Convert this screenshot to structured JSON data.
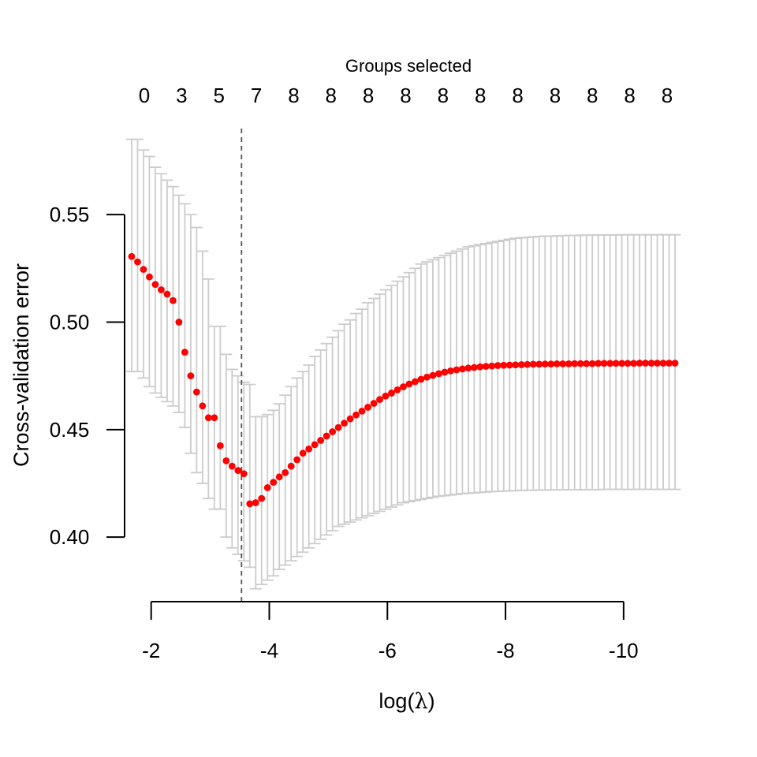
{
  "chart_data": {
    "type": "scatter",
    "title": "",
    "xlabel_prefix": "log",
    "xlabel_symbol": "λ",
    "ylabel": "Cross-validation error",
    "top_axis_title": "Groups selected",
    "top_axis_labels": [
      "0",
      "3",
      "5",
      "7",
      "8",
      "8",
      "8",
      "8",
      "8",
      "8",
      "8",
      "8",
      "8",
      "8",
      "8"
    ],
    "x_ticks": [
      -2,
      -4,
      -6,
      -8,
      -10
    ],
    "x_tick_labels": [
      "-2",
      "-4",
      "-6",
      "-8",
      "-10"
    ],
    "y_ticks": [
      0.4,
      0.45,
      0.5,
      0.55
    ],
    "y_tick_labels": [
      "0.40",
      "0.45",
      "0.50",
      "0.55"
    ],
    "xlim": [
      -1.55,
      -10.95
    ],
    "ylim": [
      0.37,
      0.59
    ],
    "selected_log_lambda": -3.53,
    "grid": false,
    "colors": {
      "points": "#ff0000",
      "error_bars": "#cccccc",
      "reference_line": "#555555",
      "axes": "#000000"
    },
    "series": [
      {
        "x": [
          -1.67,
          -1.77,
          -1.87,
          -1.97,
          -2.07,
          -2.17,
          -2.27,
          -2.37,
          -2.47,
          -2.57,
          -2.67,
          -2.77,
          -2.87,
          -2.97,
          -3.07,
          -3.17,
          -3.27,
          -3.37,
          -3.47,
          -3.57,
          -3.67,
          -3.77,
          -3.87,
          -3.97,
          -4.07,
          -4.17,
          -4.27,
          -4.37,
          -4.47,
          -4.57,
          -4.67,
          -4.77,
          -4.87,
          -4.97,
          -5.07,
          -5.17,
          -5.27,
          -5.37,
          -5.47,
          -5.57,
          -5.67,
          -5.77,
          -5.87,
          -5.97,
          -6.07,
          -6.17,
          -6.27,
          -6.37,
          -6.47,
          -6.57,
          -6.67,
          -6.77,
          -6.87,
          -6.97,
          -7.07,
          -7.17,
          -7.27,
          -7.37,
          -7.47,
          -7.57,
          -7.67,
          -7.77,
          -7.87,
          -7.97,
          -8.07,
          -8.17,
          -8.27,
          -8.37,
          -8.47,
          -8.57,
          -8.67,
          -8.77,
          -8.87,
          -8.97,
          -9.07,
          -9.17,
          -9.27,
          -9.37,
          -9.47,
          -9.57,
          -9.67,
          -9.77,
          -9.87,
          -9.97,
          -10.07,
          -10.17,
          -10.27,
          -10.37,
          -10.47,
          -10.57,
          -10.67,
          -10.77,
          -10.87
        ],
        "cve": [
          0.5305,
          0.528,
          0.5245,
          0.521,
          0.5175,
          0.515,
          0.513,
          0.51,
          0.5,
          0.486,
          0.475,
          0.4675,
          0.461,
          0.4555,
          0.4555,
          0.4425,
          0.4355,
          0.433,
          0.431,
          0.4295,
          0.4155,
          0.416,
          0.418,
          0.423,
          0.4255,
          0.428,
          0.43,
          0.433,
          0.436,
          0.439,
          0.441,
          0.443,
          0.445,
          0.447,
          0.449,
          0.451,
          0.453,
          0.455,
          0.4568,
          0.4586,
          0.4604,
          0.4622,
          0.464,
          0.4656,
          0.467,
          0.4685,
          0.4699,
          0.4712,
          0.4723,
          0.4734,
          0.4744,
          0.4752,
          0.476,
          0.4767,
          0.4773,
          0.4778,
          0.4782,
          0.4786,
          0.4789,
          0.4792,
          0.4794,
          0.4796,
          0.4798,
          0.4799,
          0.48,
          0.4801,
          0.4802,
          0.4803,
          0.4804,
          0.4804,
          0.4805,
          0.4805,
          0.4806,
          0.4806,
          0.4806,
          0.4807,
          0.4807,
          0.4807,
          0.4807,
          0.4808,
          0.4808,
          0.4808,
          0.4808,
          0.4808,
          0.4808,
          0.4808,
          0.4809,
          0.4809,
          0.4809,
          0.4809,
          0.4809,
          0.4809,
          0.4809
        ],
        "upper": [
          0.585,
          0.585,
          0.58,
          0.577,
          0.572,
          0.569,
          0.566,
          0.563,
          0.559,
          0.555,
          0.55,
          0.544,
          0.533,
          0.52,
          0.498,
          0.498,
          0.485,
          0.478,
          0.475,
          0.472,
          0.471,
          0.456,
          0.456,
          0.457,
          0.459,
          0.462,
          0.466,
          0.47,
          0.474,
          0.477,
          0.48,
          0.484,
          0.487,
          0.49,
          0.493,
          0.496,
          0.499,
          0.501,
          0.504,
          0.506,
          0.509,
          0.511,
          0.513,
          0.515,
          0.517,
          0.519,
          0.521,
          0.523,
          0.525,
          0.527,
          0.528,
          0.529,
          0.53,
          0.531,
          0.532,
          0.533,
          0.534,
          0.535,
          0.5355,
          0.536,
          0.5365,
          0.537,
          0.5375,
          0.538,
          0.5385,
          0.539,
          0.5392,
          0.5394,
          0.5396,
          0.5398,
          0.54,
          0.54,
          0.5401,
          0.5402,
          0.5403,
          0.5403,
          0.5404,
          0.5404,
          0.5405,
          0.5405,
          0.5405,
          0.5405,
          0.5405,
          0.5406,
          0.5406,
          0.5406,
          0.5406,
          0.5406,
          0.5406,
          0.5406,
          0.5406,
          0.5406,
          0.5406
        ],
        "lower": [
          0.477,
          0.477,
          0.474,
          0.47,
          0.467,
          0.465,
          0.463,
          0.461,
          0.458,
          0.451,
          0.439,
          0.43,
          0.425,
          0.418,
          0.413,
          0.413,
          0.4,
          0.395,
          0.392,
          0.389,
          0.386,
          0.376,
          0.378,
          0.38,
          0.382,
          0.385,
          0.387,
          0.389,
          0.391,
          0.393,
          0.395,
          0.397,
          0.399,
          0.401,
          0.403,
          0.405,
          0.406,
          0.407,
          0.408,
          0.409,
          0.41,
          0.411,
          0.412,
          0.413,
          0.414,
          0.415,
          0.416,
          0.4165,
          0.417,
          0.4175,
          0.418,
          0.4185,
          0.419,
          0.4193,
          0.4196,
          0.4199,
          0.4202,
          0.4204,
          0.4206,
          0.4208,
          0.421,
          0.4212,
          0.4213,
          0.4214,
          0.4215,
          0.4216,
          0.4217,
          0.4218,
          0.4218,
          0.4219,
          0.4219,
          0.422,
          0.422,
          0.422,
          0.4221,
          0.4221,
          0.4221,
          0.4221,
          0.4221,
          0.4221,
          0.4222,
          0.4222,
          0.4222,
          0.4222,
          0.4222,
          0.4222,
          0.4222,
          0.4222,
          0.4222,
          0.4222,
          0.4222,
          0.4222,
          0.4222
        ]
      }
    ]
  }
}
